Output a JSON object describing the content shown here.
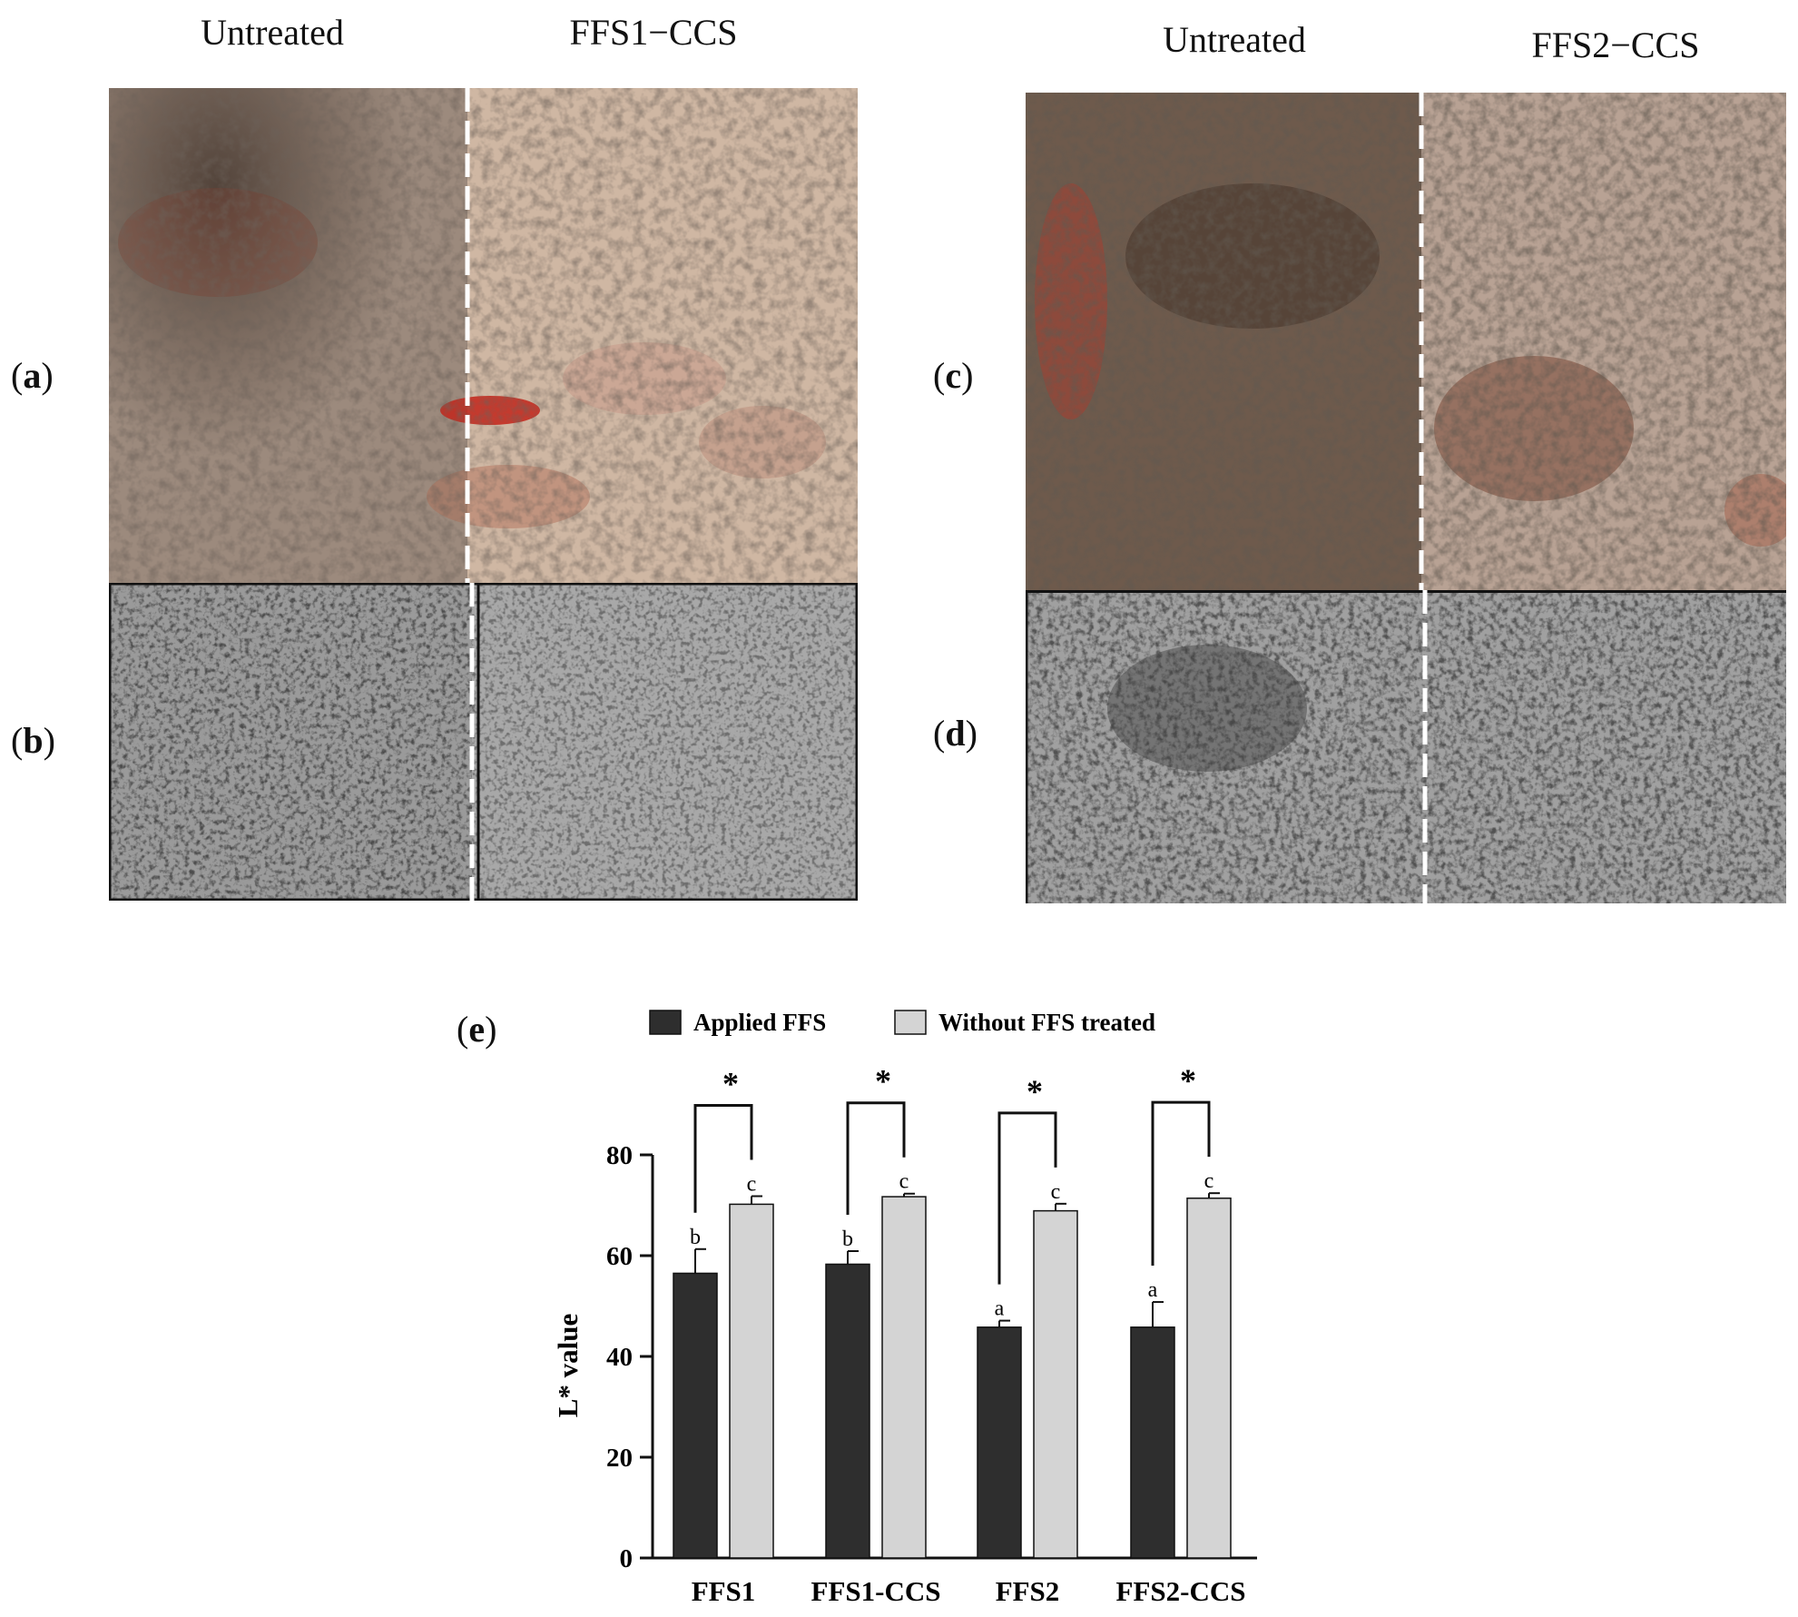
{
  "photo_panels": {
    "left": {
      "col_untreated": "Untreated",
      "col_treated": "FFS1−CCS",
      "label_top": {
        "open": "(",
        "letter": "a",
        "close": ")"
      },
      "label_bottom": {
        "open": "(",
        "letter": "b",
        "close": ")"
      }
    },
    "right": {
      "col_untreated": "Untreated",
      "col_treated": "FFS2−CCS",
      "label_top": {
        "open": "(",
        "letter": "c",
        "close": ")"
      },
      "label_bottom": {
        "open": "(",
        "letter": "d",
        "close": ")"
      }
    }
  },
  "chart_panel_label": {
    "open": "(",
    "letter": "e",
    "close": ")"
  },
  "chart_data": {
    "type": "bar",
    "categories": [
      "FFS1",
      "FFS1-CCS",
      "FFS2",
      "FFS2-CCS"
    ],
    "series": [
      {
        "name": "Applied FFS",
        "color": "#2e2e2e",
        "values": [
          56.5,
          58.3,
          45.8,
          45.8
        ],
        "errors": [
          4.8,
          2.6,
          1.3,
          5.0
        ],
        "letters": [
          "b",
          "b",
          "a",
          "a"
        ]
      },
      {
        "name": "Without FFS treated",
        "color": "#d4d4d4",
        "values": [
          70.2,
          71.7,
          68.9,
          71.4
        ],
        "errors": [
          1.6,
          0.6,
          1.4,
          1.0
        ],
        "letters": [
          "c",
          "c",
          "c",
          "c"
        ]
      }
    ],
    "significance": [
      "*",
      "*",
      "*",
      "*"
    ],
    "ylabel": "L* value",
    "yticks": [
      0,
      20,
      40,
      60,
      80
    ],
    "ylim": [
      0,
      80
    ],
    "legend_position": "top"
  }
}
